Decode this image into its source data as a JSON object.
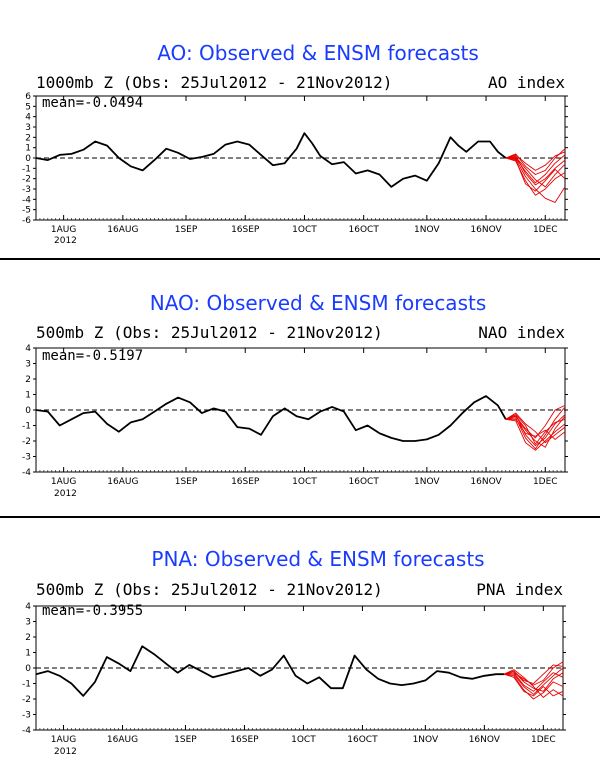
{
  "chart_data": [
    {
      "type": "line",
      "title": "AO: Observed & ENSM forecasts",
      "subtitle": "1000mb Z (Obs: 25Jul2012 - 21Nov2012)",
      "index_label": "AO index",
      "mean_label": "mean=-0.0494",
      "ylim": [
        -6,
        6
      ],
      "yticks": [
        6,
        5,
        4,
        3,
        2,
        1,
        0,
        -1,
        -2,
        -3,
        -4,
        -5,
        -6
      ],
      "xticks": [
        "1AUG",
        "16AUG",
        "1SEP",
        "16SEP",
        "1OCT",
        "16OCT",
        "1NOV",
        "16NOV",
        "1DEC"
      ],
      "xtick_days": [
        7,
        22,
        38,
        53,
        68,
        83,
        99,
        114,
        129
      ],
      "year_label": "2012",
      "x_range": [
        0,
        134
      ],
      "observed": {
        "x": [
          0,
          3,
          6,
          9,
          12,
          15,
          18,
          21,
          24,
          27,
          30,
          33,
          36,
          39,
          42,
          45,
          48,
          51,
          54,
          57,
          60,
          63,
          66,
          68,
          70,
          72,
          75,
          78,
          81,
          84,
          87,
          90,
          93,
          96,
          99,
          102,
          105,
          107,
          109,
          112,
          115,
          117,
          119
        ],
        "y": [
          0.0,
          -0.2,
          0.3,
          0.4,
          0.8,
          1.6,
          1.2,
          0.0,
          -0.8,
          -1.2,
          -0.2,
          0.9,
          0.5,
          -0.1,
          0.1,
          0.4,
          1.3,
          1.6,
          1.3,
          0.3,
          -0.7,
          -0.5,
          0.9,
          2.4,
          1.4,
          0.2,
          -0.6,
          -0.4,
          -1.5,
          -1.2,
          -1.6,
          -2.8,
          -2.0,
          -1.7,
          -2.2,
          -0.5,
          2.0,
          1.2,
          0.6,
          1.6,
          1.6,
          0.6,
          0.0
        ]
      },
      "forecast_start": 119,
      "ensemble": [
        [
          0.0,
          0.4,
          -0.8,
          -1.6,
          -1.2,
          0.0,
          0.9
        ],
        [
          0.0,
          0.2,
          -1.5,
          -2.6,
          -2.0,
          -1.0,
          -0.2
        ],
        [
          0.0,
          -0.3,
          -2.2,
          -3.6,
          -3.0,
          -2.0,
          -1.4
        ],
        [
          0.0,
          0.1,
          -1.0,
          -2.1,
          -2.8,
          -1.6,
          -0.6
        ],
        [
          0.0,
          -0.1,
          -1.8,
          -3.0,
          -3.9,
          -4.3,
          -2.8
        ],
        [
          0.0,
          0.3,
          -0.5,
          -1.2,
          -0.7,
          0.2,
          0.6
        ],
        [
          0.0,
          -0.2,
          -2.5,
          -3.2,
          -2.2,
          -1.1,
          -2.0
        ],
        [
          0.0,
          0.0,
          -1.3,
          -2.4,
          -1.6,
          -0.5,
          0.3
        ]
      ],
      "forecast_color": "#e60000",
      "observed_color": "#000000",
      "title_color": "#1a3cff"
    },
    {
      "type": "line",
      "title": "NAO: Observed & ENSM forecasts",
      "subtitle": "500mb Z (Obs: 25Jul2012 - 21Nov2012)",
      "index_label": "NAO index",
      "mean_label": "mean=-0.5197",
      "ylim": [
        -4,
        4
      ],
      "yticks": [
        4,
        3,
        2,
        1,
        0,
        -1,
        -2,
        -3,
        -4
      ],
      "xticks": [
        "1AUG",
        "16AUG",
        "1SEP",
        "16SEP",
        "1OCT",
        "16OCT",
        "1NOV",
        "16NOV",
        "1DEC"
      ],
      "xtick_days": [
        7,
        22,
        38,
        53,
        68,
        83,
        99,
        114,
        129
      ],
      "year_label": "2012",
      "x_range": [
        0,
        134
      ],
      "observed": {
        "x": [
          0,
          3,
          6,
          9,
          12,
          15,
          18,
          21,
          24,
          27,
          30,
          33,
          36,
          39,
          42,
          45,
          48,
          51,
          54,
          57,
          60,
          63,
          66,
          69,
          72,
          75,
          78,
          81,
          84,
          87,
          90,
          93,
          96,
          99,
          102,
          105,
          108,
          111,
          114,
          117,
          119
        ],
        "y": [
          0.0,
          -0.1,
          -1.0,
          -0.6,
          -0.2,
          -0.1,
          -0.9,
          -1.4,
          -0.8,
          -0.6,
          -0.1,
          0.4,
          0.8,
          0.5,
          -0.2,
          0.1,
          -0.1,
          -1.1,
          -1.2,
          -1.6,
          -0.4,
          0.1,
          -0.4,
          -0.6,
          -0.1,
          0.2,
          -0.1,
          -1.3,
          -1.0,
          -1.5,
          -1.8,
          -2.0,
          -2.0,
          -1.9,
          -1.6,
          -1.0,
          -0.2,
          0.5,
          0.9,
          0.3,
          -0.6
        ]
      },
      "forecast_start": 119,
      "ensemble": [
        [
          -0.6,
          -0.4,
          -1.2,
          -1.8,
          -1.0,
          0.0,
          0.3
        ],
        [
          -0.6,
          -0.3,
          -1.6,
          -2.3,
          -1.8,
          -0.9,
          -0.3
        ],
        [
          -0.6,
          -0.7,
          -2.1,
          -2.6,
          -2.0,
          -1.4,
          -0.9
        ],
        [
          -0.6,
          -0.2,
          -0.9,
          -1.4,
          -2.1,
          -1.6,
          -1.1
        ],
        [
          -0.6,
          -0.5,
          -1.8,
          -2.5,
          -1.6,
          -0.6,
          0.2
        ],
        [
          -0.6,
          -0.4,
          -1.3,
          -2.0,
          -2.4,
          -1.2,
          -0.4
        ],
        [
          -0.6,
          -0.6,
          -1.5,
          -1.7,
          -1.3,
          -1.9,
          -1.4
        ],
        [
          -0.6,
          -0.3,
          -1.0,
          -2.2,
          -1.4,
          -0.8,
          -0.6
        ]
      ],
      "forecast_color": "#e60000",
      "observed_color": "#000000",
      "title_color": "#1a3cff"
    },
    {
      "type": "line",
      "title": "PNA: Observed & ENSM forecasts",
      "subtitle": "500mb Z (Obs: 25Jul2012 - 21Nov2012)",
      "index_label": "PNA index",
      "mean_label": "mean=-0.3955",
      "ylim": [
        -4,
        4
      ],
      "yticks": [
        4,
        3,
        2,
        1,
        0,
        -1,
        -2,
        -3,
        -4
      ],
      "xticks": [
        "1AUG",
        "16AUG",
        "1SEP",
        "16SEP",
        "1OCT",
        "16OCT",
        "1NOV",
        "16NOV",
        "1DEC"
      ],
      "xtick_days": [
        7,
        22,
        38,
        53,
        68,
        83,
        99,
        114,
        129
      ],
      "year_label": "2012",
      "x_range": [
        0,
        134
      ],
      "observed": {
        "x": [
          0,
          3,
          6,
          9,
          12,
          15,
          18,
          21,
          24,
          27,
          30,
          33,
          36,
          39,
          42,
          45,
          48,
          51,
          54,
          57,
          60,
          63,
          66,
          69,
          72,
          75,
          78,
          81,
          84,
          87,
          90,
          93,
          96,
          99,
          102,
          105,
          108,
          111,
          114,
          117,
          119
        ],
        "y": [
          -0.4,
          -0.2,
          -0.5,
          -1.0,
          -1.8,
          -0.9,
          0.7,
          0.3,
          -0.2,
          1.4,
          0.9,
          0.3,
          -0.3,
          0.2,
          -0.2,
          -0.6,
          -0.4,
          -0.2,
          0.0,
          -0.5,
          -0.1,
          0.8,
          -0.5,
          -1.0,
          -0.6,
          -1.3,
          -1.3,
          0.8,
          -0.1,
          -0.7,
          -1.0,
          -1.1,
          -1.0,
          -0.8,
          -0.2,
          -0.3,
          -0.6,
          -0.7,
          -0.5,
          -0.4,
          -0.4
        ]
      },
      "forecast_start": 119,
      "ensemble": [
        [
          -0.4,
          -0.2,
          -0.8,
          -1.0,
          -0.4,
          0.2,
          0.1
        ],
        [
          -0.4,
          -0.3,
          -1.1,
          -1.5,
          -0.9,
          -0.3,
          -0.6
        ],
        [
          -0.4,
          -0.5,
          -1.4,
          -2.0,
          -1.6,
          -0.9,
          -1.2
        ],
        [
          -0.4,
          -0.1,
          -0.6,
          -1.2,
          -1.9,
          -1.4,
          -1.8
        ],
        [
          -0.4,
          -0.4,
          -1.2,
          -1.7,
          -1.1,
          -0.5,
          0.0
        ],
        [
          -0.4,
          -0.2,
          -0.9,
          -1.3,
          -1.5,
          -0.7,
          -0.3
        ],
        [
          -0.4,
          -0.6,
          -1.5,
          -1.8,
          -1.2,
          -1.8,
          -1.5
        ],
        [
          -0.4,
          -0.3,
          -0.7,
          -1.1,
          -0.8,
          0.0,
          0.4
        ]
      ],
      "forecast_color": "#e60000",
      "observed_color": "#000000",
      "title_color": "#1a3cff"
    }
  ]
}
